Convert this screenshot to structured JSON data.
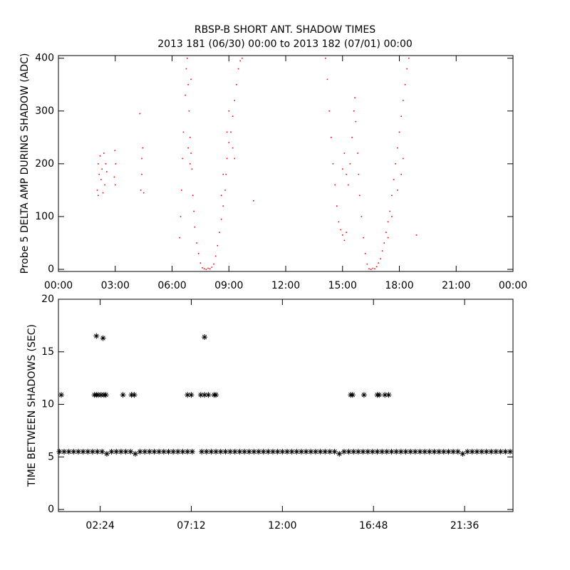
{
  "chart_data": [
    {
      "type": "scatter",
      "title": "RBSP-B SHORT ANT. SHADOW TIMES",
      "subtitle": "2013 181 (06/30) 00:00 to 2013 182 (07/01) 00:00",
      "y_label": "Probe 5 DELTA AMP DURING SHADOW (ADC)",
      "xlim": [
        0,
        24
      ],
      "ylim": [
        -4,
        405
      ],
      "xticks": [
        {
          "value": 0,
          "label": "00:00"
        },
        {
          "value": 3,
          "label": "03:00"
        },
        {
          "value": 6,
          "label": "06:00"
        },
        {
          "value": 9,
          "label": "09:00"
        },
        {
          "value": 12,
          "label": "12:00"
        },
        {
          "value": 15,
          "label": "15:00"
        },
        {
          "value": 18,
          "label": "18:00"
        },
        {
          "value": 21,
          "label": "21:00"
        },
        {
          "value": 24,
          "label": "00:00"
        }
      ],
      "yticks": [
        0,
        100,
        200,
        300,
        400
      ],
      "series": [
        {
          "color": "#ff0000",
          "marker": "dot",
          "x": [
            2.05,
            2.1,
            2.15,
            2.1,
            2.2,
            2.25,
            2.3,
            2.35,
            2.4,
            2.45,
            2.5,
            2.55,
            2.95,
            3.0,
            2.98,
            3.02,
            4.35,
            4.4,
            4.45,
            4.4,
            4.3,
            4.5,
            6.4,
            6.45,
            6.5,
            6.55,
            6.6,
            6.7,
            6.75,
            6.8,
            6.85,
            6.9,
            6.95,
            7.0,
            7.05,
            7.1,
            7.15,
            7.2,
            7.3,
            7.4,
            7.5,
            7.6,
            6.85,
            6.95,
            7.0,
            7.7,
            7.8,
            7.9,
            8.0,
            8.1,
            8.2,
            8.3,
            8.4,
            8.5,
            8.6,
            8.7,
            8.8,
            8.85,
            8.9,
            9.0,
            9.1,
            9.2,
            9.3,
            9.4,
            9.5,
            9.6,
            9.7,
            8.7,
            8.9,
            9.0,
            9.2,
            9.3,
            8.6,
            10.3,
            14.1,
            14.2,
            14.3,
            14.4,
            14.5,
            14.6,
            14.7,
            14.8,
            14.9,
            15.0,
            15.1,
            15.2,
            15.0,
            15.1,
            15.2,
            15.3,
            15.4,
            15.5,
            15.6,
            15.65,
            15.7,
            15.8,
            15.85,
            15.9,
            16.0,
            16.1,
            16.2,
            16.3,
            16.4,
            16.5,
            16.6,
            16.7,
            16.8,
            16.9,
            17.0,
            17.1,
            17.2,
            17.3,
            17.4,
            17.5,
            17.6,
            17.7,
            17.8,
            17.9,
            18.0,
            18.1,
            18.2,
            18.3,
            18.4,
            18.5,
            17.4,
            17.6,
            17.9,
            18.1,
            18.2,
            18.9
          ],
          "values": [
            150,
            200,
            180,
            140,
            215,
            170,
            190,
            145,
            220,
            160,
            200,
            185,
            175,
            160,
            225,
            200,
            150,
            210,
            230,
            180,
            295,
            145,
            60,
            100,
            150,
            210,
            260,
            330,
            380,
            400,
            350,
            300,
            250,
            220,
            190,
            140,
            110,
            80,
            50,
            30,
            12,
            3,
            230,
            200,
            360,
            1,
            0,
            2,
            1,
            4,
            10,
            25,
            45,
            70,
            95,
            120,
            150,
            180,
            210,
            240,
            260,
            290,
            320,
            350,
            380,
            395,
            400,
            180,
            260,
            300,
            230,
            210,
            140,
            130,
            400,
            360,
            300,
            250,
            200,
            160,
            120,
            90,
            75,
            65,
            55,
            70,
            190,
            220,
            180,
            160,
            200,
            250,
            300,
            325,
            280,
            220,
            180,
            140,
            100,
            60,
            30,
            10,
            1,
            0,
            2,
            1,
            5,
            12,
            20,
            35,
            50,
            70,
            90,
            110,
            140,
            170,
            200,
            230,
            260,
            290,
            320,
            350,
            380,
            400,
            60,
            100,
            150,
            180,
            210,
            65
          ]
        }
      ]
    },
    {
      "type": "scatter",
      "y_label": "TIME BETWEEN SHADOWS (SEC)",
      "xlim": [
        0.2,
        24.15
      ],
      "ylim": [
        -0.2,
        20
      ],
      "xticks": [
        {
          "value": 2.4,
          "label": "02:24"
        },
        {
          "value": 7.2,
          "label": "07:12"
        },
        {
          "value": 12,
          "label": "12:00"
        },
        {
          "value": 16.8,
          "label": "16:48"
        },
        {
          "value": 21.6,
          "label": "21:36"
        }
      ],
      "yticks": [
        0,
        5,
        10,
        15,
        20
      ],
      "series": [
        {
          "color": "#000000",
          "marker": "asterisk",
          "x": [
            0.25,
            0.5,
            0.75,
            1,
            1.25,
            1.5,
            1.75,
            2,
            2.25,
            2.5,
            2.75,
            3,
            3.25,
            3.5,
            3.75,
            4,
            4.25,
            4.5,
            4.75,
            5,
            5.25,
            5.5,
            5.75,
            6,
            6.25,
            6.5,
            6.75,
            7,
            7.25,
            7.75,
            8,
            8.25,
            8.5,
            8.75,
            9,
            9.25,
            9.5,
            9.75,
            10,
            10.25,
            10.5,
            10.75,
            11,
            11.25,
            11.5,
            11.75,
            12,
            12.25,
            12.5,
            12.75,
            13,
            13.25,
            13.5,
            13.75,
            14,
            14.25,
            14.5,
            14.75,
            15,
            15.25,
            15.5,
            15.75,
            16,
            16.25,
            16.5,
            16.75,
            17,
            17.25,
            17.5,
            17.75,
            18,
            18.25,
            18.5,
            18.75,
            19,
            19.25,
            19.5,
            19.75,
            20,
            20.25,
            20.5,
            20.75,
            21,
            21.25,
            21.5,
            21.75,
            22,
            22.25,
            22.5,
            22.75,
            23,
            23.25,
            23.5,
            23.75,
            24,
            0.35,
            2.1,
            2.2,
            2.3,
            2.45,
            2.6,
            2.7,
            3.6,
            4.05,
            4.2,
            7.0,
            7.2,
            7.7,
            7.9,
            8.1,
            8.4,
            8.5,
            15.6,
            15.7,
            16.3,
            17.0,
            17.1,
            17.4,
            17.6,
            2.2,
            2.55,
            7.9
          ],
          "values": [
            5.5,
            5.5,
            5.5,
            5.5,
            5.5,
            5.5,
            5.5,
            5.5,
            5.5,
            5.5,
            5.3,
            5.5,
            5.5,
            5.5,
            5.5,
            5.5,
            5.3,
            5.5,
            5.5,
            5.5,
            5.5,
            5.5,
            5.5,
            5.5,
            5.5,
            5.5,
            5.5,
            5.5,
            5.5,
            5.5,
            5.5,
            5.5,
            5.5,
            5.5,
            5.5,
            5.5,
            5.5,
            5.5,
            5.5,
            5.5,
            5.5,
            5.5,
            5.5,
            5.5,
            5.5,
            5.5,
            5.5,
            5.5,
            5.5,
            5.5,
            5.5,
            5.5,
            5.5,
            5.5,
            5.5,
            5.5,
            5.5,
            5.5,
            5.3,
            5.5,
            5.5,
            5.5,
            5.5,
            5.5,
            5.5,
            5.5,
            5.5,
            5.5,
            5.5,
            5.5,
            5.5,
            5.5,
            5.5,
            5.5,
            5.5,
            5.5,
            5.5,
            5.5,
            5.5,
            5.5,
            5.5,
            5.5,
            5.5,
            5.5,
            5.3,
            5.5,
            5.5,
            5.5,
            5.5,
            5.5,
            5.5,
            5.5,
            5.5,
            5.5,
            5.5,
            10.9,
            10.9,
            10.9,
            10.9,
            10.9,
            10.9,
            10.9,
            10.9,
            10.9,
            10.9,
            10.9,
            10.9,
            10.9,
            10.9,
            10.9,
            10.9,
            10.9,
            10.9,
            10.9,
            10.9,
            10.9,
            10.9,
            10.9,
            10.9,
            16.5,
            16.3,
            16.4
          ]
        }
      ]
    }
  ]
}
